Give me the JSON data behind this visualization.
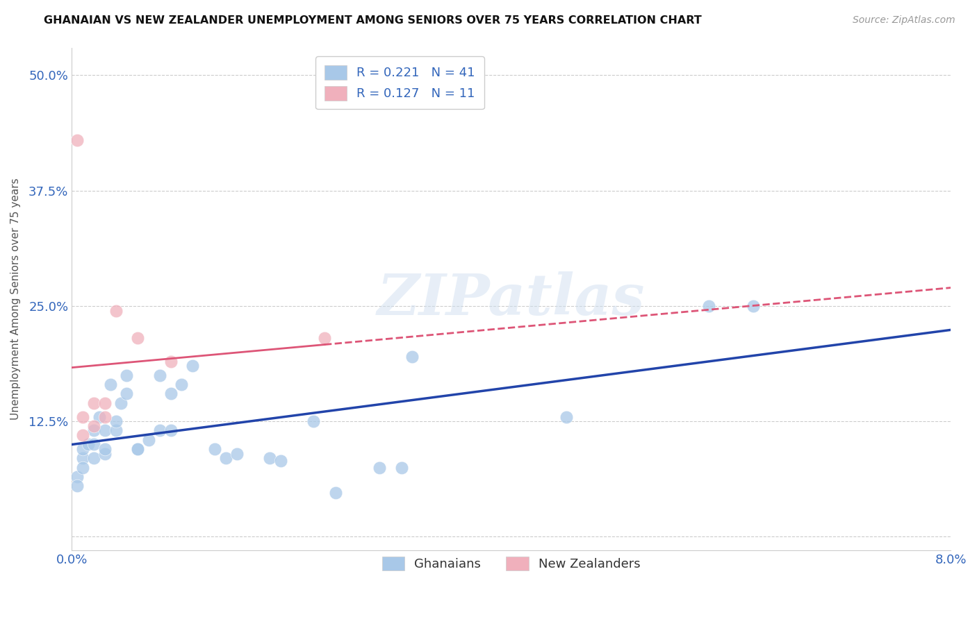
{
  "title": "GHANAIAN VS NEW ZEALANDER UNEMPLOYMENT AMONG SENIORS OVER 75 YEARS CORRELATION CHART",
  "source": "Source: ZipAtlas.com",
  "ylabel": "Unemployment Among Seniors over 75 years",
  "xlim": [
    0.0,
    0.08
  ],
  "ylim": [
    -0.015,
    0.53
  ],
  "yticks": [
    0.0,
    0.125,
    0.25,
    0.375,
    0.5
  ],
  "ytick_labels": [
    "",
    "12.5%",
    "25.0%",
    "37.5%",
    "50.0%"
  ],
  "xticks": [
    0.0,
    0.01,
    0.02,
    0.03,
    0.04,
    0.05,
    0.06,
    0.07,
    0.08
  ],
  "background_color": "#ffffff",
  "grid_color": "#cccccc",
  "watermark": "ZIPatlas",
  "legend_R_blue": "0.221",
  "legend_N_blue": "41",
  "legend_R_pink": "0.127",
  "legend_N_pink": "11",
  "blue_color": "#a8c8e8",
  "pink_color": "#f0b0bc",
  "line_blue": "#2244aa",
  "line_pink": "#dd5577",
  "ghanaians_x": [
    0.0005,
    0.0005,
    0.001,
    0.001,
    0.001,
    0.0015,
    0.002,
    0.002,
    0.002,
    0.0025,
    0.003,
    0.003,
    0.003,
    0.0035,
    0.004,
    0.004,
    0.0045,
    0.005,
    0.005,
    0.006,
    0.006,
    0.007,
    0.008,
    0.008,
    0.009,
    0.009,
    0.01,
    0.011,
    0.013,
    0.014,
    0.015,
    0.018,
    0.019,
    0.022,
    0.024,
    0.028,
    0.03,
    0.031,
    0.045,
    0.058,
    0.062
  ],
  "ghanaians_y": [
    0.065,
    0.055,
    0.085,
    0.075,
    0.095,
    0.1,
    0.085,
    0.1,
    0.115,
    0.13,
    0.09,
    0.095,
    0.115,
    0.165,
    0.115,
    0.125,
    0.145,
    0.155,
    0.175,
    0.095,
    0.095,
    0.105,
    0.175,
    0.115,
    0.115,
    0.155,
    0.165,
    0.185,
    0.095,
    0.085,
    0.09,
    0.085,
    0.082,
    0.125,
    0.048,
    0.075,
    0.075,
    0.195,
    0.13,
    0.25,
    0.25
  ],
  "nz_x": [
    0.0005,
    0.001,
    0.001,
    0.002,
    0.002,
    0.003,
    0.003,
    0.004,
    0.006,
    0.009,
    0.023
  ],
  "nz_y": [
    0.43,
    0.13,
    0.11,
    0.145,
    0.12,
    0.145,
    0.13,
    0.245,
    0.215,
    0.19,
    0.215
  ]
}
